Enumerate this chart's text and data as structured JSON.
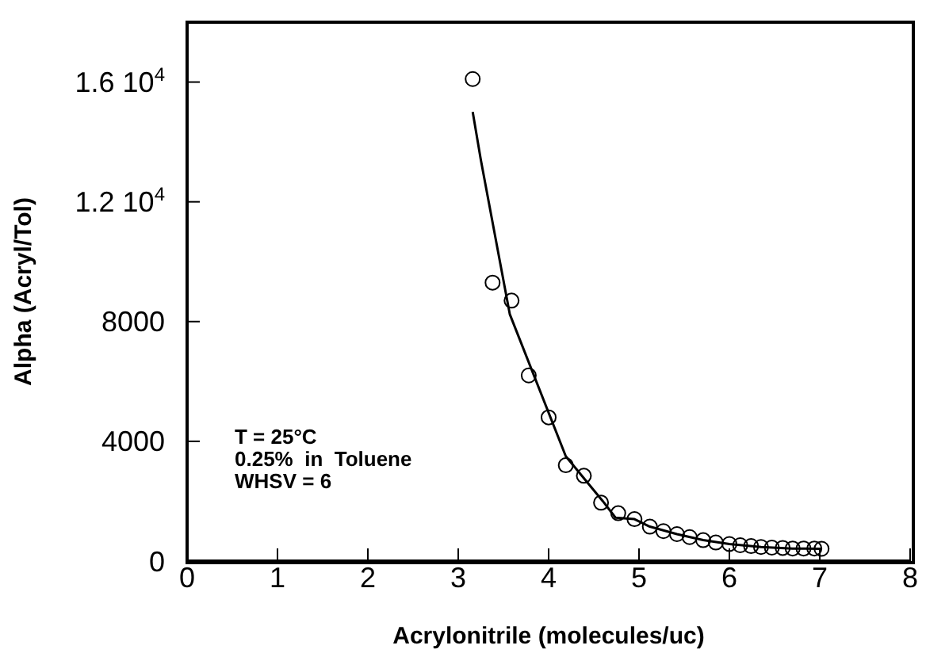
{
  "chart_data": {
    "type": "scatter",
    "xlabel": "Acrylonitrile  (molecules/uc)",
    "ylabel": "Alpha  (Acryl/Tol)",
    "xlim": [
      0,
      8
    ],
    "xticks": [
      0,
      1,
      2,
      3,
      4,
      5,
      6,
      7,
      8
    ],
    "ylim": [
      0,
      18000
    ],
    "yticks": [
      0,
      4000,
      8000,
      {
        "value": 12000,
        "label": "1.2 10$^{4}$"
      },
      {
        "value": 16000,
        "label": "1.6 10$^{4}$"
      }
    ],
    "grid": false,
    "annotations": [
      "T = 25°C",
      "0.25%  in  Toluene",
      "WHSV = 6"
    ],
    "series": [
      {
        "color": "#000000",
        "marker": "circle",
        "x": [
          3.16,
          3.38,
          3.59,
          3.78,
          4.0,
          4.19,
          4.39,
          4.58,
          4.77,
          4.95,
          5.12,
          5.27,
          5.42,
          5.56,
          5.71,
          5.85,
          6.0,
          6.12,
          6.24,
          6.35,
          6.47,
          6.59,
          6.7,
          6.82,
          6.94,
          7.02
        ],
        "values": [
          16100,
          9300,
          8700,
          6200,
          4800,
          3200,
          2850,
          1950,
          1600,
          1400,
          1150,
          1000,
          900,
          800,
          700,
          620,
          570,
          530,
          500,
          470,
          450,
          440,
          420,
          420,
          420,
          410
        ]
      },
      {
        "type": "line",
        "color": "#000000",
        "marker": "none",
        "line_style": "solid",
        "x": [
          3.16,
          3.25,
          3.57,
          4.19,
          4.6,
          4.74,
          4.95,
          5.12,
          5.42,
          5.71,
          6.0,
          6.35,
          6.7,
          7.02
        ],
        "values": [
          15000,
          13400,
          8250,
          3500,
          2000,
          1450,
          1400,
          1150,
          900,
          700,
          570,
          470,
          420,
          410
        ]
      }
    ]
  }
}
